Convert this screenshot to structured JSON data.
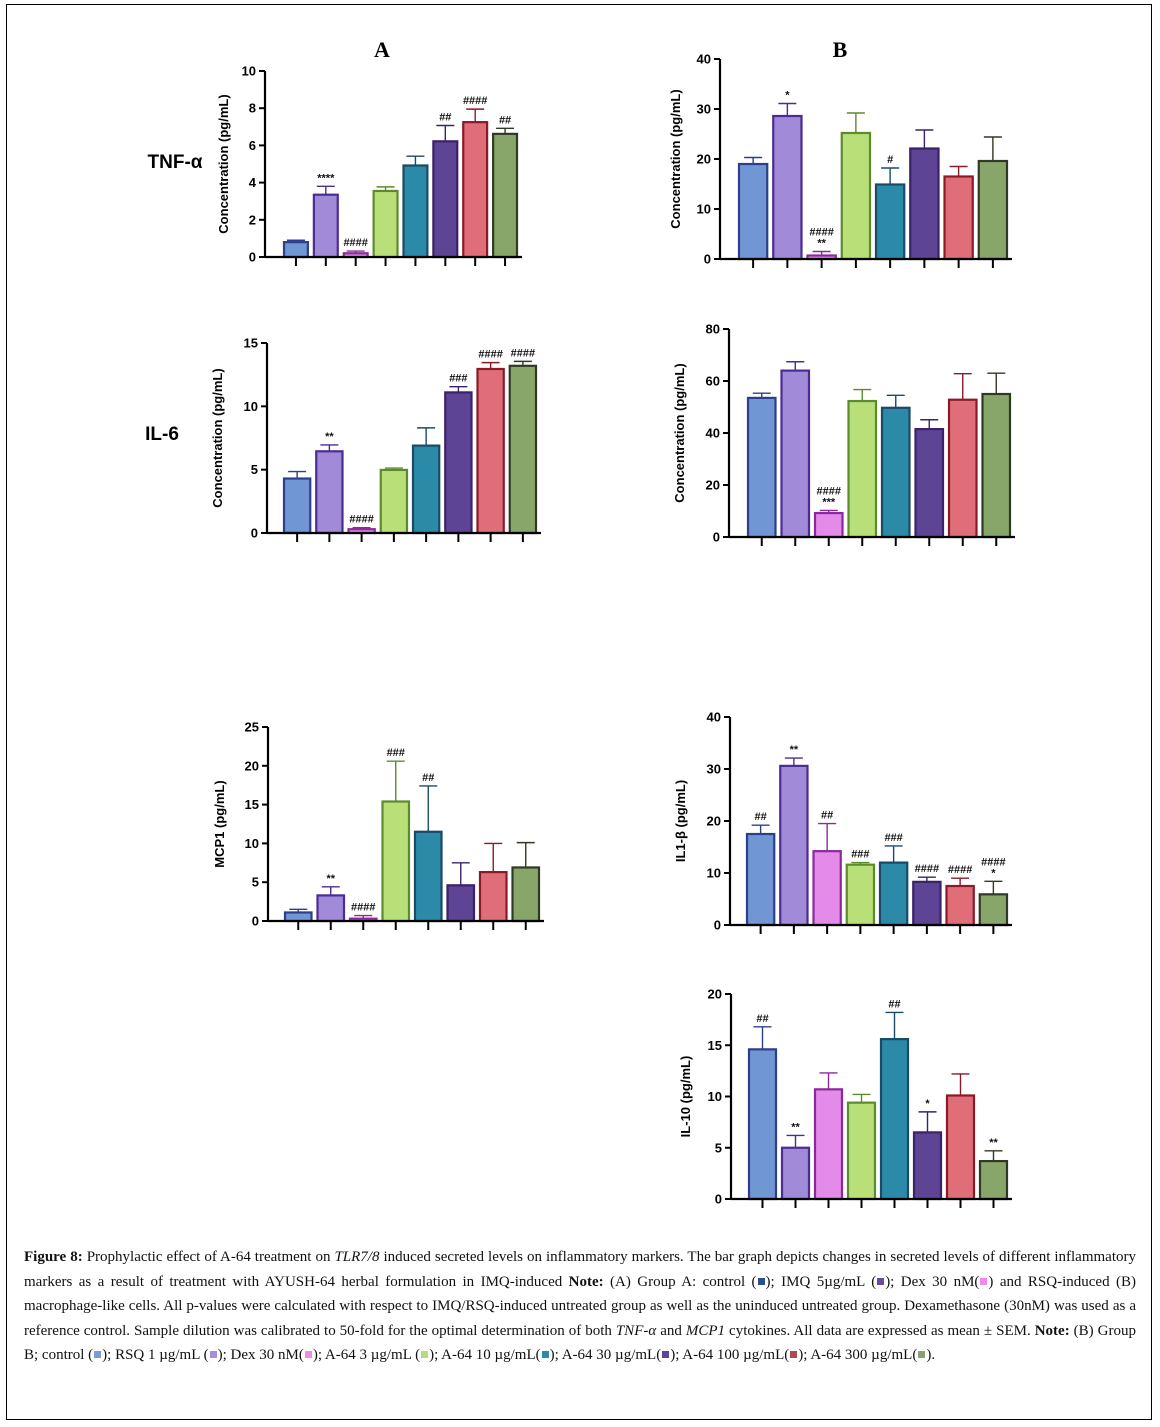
{
  "figure": {
    "panel_letters": [
      "A",
      "B"
    ],
    "row_labels": [
      "TNF-α",
      "IL-6"
    ],
    "bar_colors": [
      "#7096d4",
      "#a18ad8",
      "#e48ae8",
      "#b9df78",
      "#2a8aa8",
      "#5e4494",
      "#e06e78",
      "#89a66a"
    ],
    "bar_border_colors": [
      "#2d3f8a",
      "#4a2c92",
      "#8a2a9a",
      "#5e8a2e",
      "#1a4a66",
      "#3a2268",
      "#8a1a28",
      "#2f3a24"
    ]
  },
  "chart_data": [
    {
      "id": "tnf-a-groupA",
      "type": "bar",
      "title": "A",
      "row_label": "TNF-α",
      "ylabel": "Concentration (pg/mL)",
      "ylim": [
        0,
        10
      ],
      "yticks": [
        0,
        2,
        4,
        6,
        8,
        10
      ],
      "categories": [
        "control",
        "IMQ 5µg/mL",
        "Dex 30 nM",
        "A-64 3 µg/mL",
        "A-64 10 µg/mL",
        "A-64 30 µg/mL",
        "A-64 100 µg/mL",
        "A-64 300 µg/mL"
      ],
      "values": [
        0.8,
        3.35,
        0.2,
        3.55,
        4.92,
        6.22,
        7.25,
        6.62
      ],
      "errors": [
        0.1,
        0.45,
        0.12,
        0.22,
        0.5,
        0.85,
        0.7,
        0.3
      ],
      "annotations": [
        "",
        "****",
        "####",
        "",
        "",
        "##",
        "####",
        "##"
      ]
    },
    {
      "id": "tnf-a-groupB",
      "type": "bar",
      "title": "B",
      "row_label": "TNF-α",
      "ylabel": "Concentration (pg/mL)",
      "ylim": [
        0,
        40
      ],
      "yticks": [
        0,
        10,
        20,
        30,
        40
      ],
      "categories": [
        "control",
        "RSQ 1 µg/mL",
        "Dex 30 nM",
        "A-64 3 µg/mL",
        "A-64 10 µg/mL",
        "A-64 30 µg/mL",
        "A-64 100 µg/mL",
        "A-64 300 µg/mL"
      ],
      "values": [
        19.0,
        28.6,
        0.7,
        25.2,
        14.9,
        22.1,
        16.5,
        19.6
      ],
      "errors": [
        1.3,
        2.5,
        0.8,
        4.0,
        3.3,
        3.7,
        2.0,
        4.8
      ],
      "annotations": [
        "",
        "*",
        "####\n**",
        "",
        "#",
        "",
        "",
        ""
      ]
    },
    {
      "id": "il6-groupA",
      "type": "bar",
      "row_label": "IL-6",
      "ylabel": "Concentration (pg/mL)",
      "ylim": [
        0,
        15
      ],
      "yticks": [
        0,
        5,
        10,
        15
      ],
      "categories": [
        "control",
        "IMQ 5µg/mL",
        "Dex 30 nM",
        "A-64 3 µg/mL",
        "A-64 10 µg/mL",
        "A-64 30 µg/mL",
        "A-64 100 µg/mL",
        "A-64 300 µg/mL"
      ],
      "values": [
        4.3,
        6.45,
        0.3,
        4.98,
        6.9,
        11.1,
        12.95,
        13.2
      ],
      "errors": [
        0.55,
        0.5,
        0.12,
        0.15,
        1.4,
        0.45,
        0.5,
        0.35
      ],
      "annotations": [
        "",
        "**",
        "####",
        "",
        "",
        "###",
        "####",
        "####"
      ]
    },
    {
      "id": "il6-groupB",
      "type": "bar",
      "row_label": "IL-6",
      "ylabel": "Concentration (pg/mL)",
      "ylim": [
        0,
        80
      ],
      "yticks": [
        0,
        20,
        40,
        60,
        80
      ],
      "categories": [
        "control",
        "RSQ 1 µg/mL",
        "Dex 30 nM",
        "A-64 3 µg/mL",
        "A-64 10 µg/mL",
        "A-64 30 µg/mL",
        "A-64 100 µg/mL",
        "A-64 300 µg/mL"
      ],
      "values": [
        53.5,
        64.0,
        9.2,
        52.3,
        49.7,
        41.5,
        52.8,
        55.0
      ],
      "errors": [
        1.8,
        3.4,
        1.0,
        4.4,
        4.8,
        3.6,
        10.0,
        8.0
      ],
      "annotations": [
        "",
        "",
        "####\n***",
        "",
        "",
        "",
        "",
        ""
      ]
    },
    {
      "id": "mcp1-groupA",
      "type": "bar",
      "ylabel": "MCP1 (pg/mL)",
      "ylim": [
        0,
        25
      ],
      "yticks": [
        0,
        5,
        10,
        15,
        20,
        25
      ],
      "categories": [
        "control",
        "IMQ 5µg/mL",
        "Dex 30 nM",
        "A-64 3 µg/mL",
        "A-64 10 µg/mL",
        "A-64 30 µg/mL",
        "A-64 100 µg/mL",
        "A-64 300 µg/mL"
      ],
      "values": [
        1.1,
        3.3,
        0.3,
        15.4,
        11.5,
        4.6,
        6.3,
        6.9
      ],
      "errors": [
        0.4,
        1.1,
        0.4,
        5.2,
        5.9,
        2.9,
        3.7,
        3.2
      ],
      "annotations": [
        "",
        "**",
        "####",
        "###",
        "##",
        "",
        "",
        ""
      ]
    },
    {
      "id": "il1b-groupB",
      "type": "bar",
      "ylabel": "IL1-β (pg/mL)",
      "ylim": [
        0,
        40
      ],
      "yticks": [
        0,
        10,
        20,
        30,
        40
      ],
      "categories": [
        "control",
        "RSQ 1 µg/mL",
        "Dex 30 nM",
        "A-64 3 µg/mL",
        "A-64 10 µg/mL",
        "A-64 30 µg/mL",
        "A-64 100 µg/mL",
        "A-64 300 µg/mL"
      ],
      "values": [
        17.5,
        30.6,
        14.2,
        11.6,
        12.0,
        8.3,
        7.5,
        5.9
      ],
      "errors": [
        1.7,
        1.5,
        5.3,
        0.4,
        3.2,
        0.9,
        1.5,
        2.5
      ],
      "annotations": [
        "##",
        "**",
        "##",
        "###",
        "###",
        "####",
        "####",
        "####\n*"
      ]
    },
    {
      "id": "il10-groupB",
      "type": "bar",
      "ylabel": "IL-10 (pg/mL)",
      "ylim": [
        0,
        20
      ],
      "yticks": [
        0,
        5,
        10,
        15,
        20
      ],
      "categories": [
        "control",
        "RSQ 1 µg/mL",
        "Dex 30 nM",
        "A-64 3 µg/mL",
        "A-64 10 µg/mL",
        "A-64 30 µg/mL",
        "A-64 100 µg/mL",
        "A-64 300 µg/mL"
      ],
      "values": [
        14.6,
        5.0,
        10.7,
        9.4,
        15.6,
        6.5,
        10.1,
        3.7
      ],
      "errors": [
        2.2,
        1.2,
        1.6,
        0.8,
        2.6,
        2.0,
        2.1,
        1.0
      ],
      "annotations": [
        "##",
        "**",
        "",
        "",
        "##",
        "*",
        "",
        "**"
      ]
    }
  ],
  "caption": {
    "label": "Figure 8:",
    "t1": " Prophylactic effect of A-64 treatment on ",
    "tlr": "TLR7/8",
    "t2": " induced secreted levels on inflammatory markers. The bar graph depicts changes in secreted levels of different inflammatory markers as a result of treatment with AYUSH-64 herbal formulation in IMQ-induced ",
    "note1": "Note:",
    "t3": " (A) Group A: control (",
    "t4": "); IMQ 5µg/mL (",
    "t5": "); Dex 30 nM(",
    "t6": ")  and RSQ-induced (B) macrophage-like cells. All p-values were calculated with respect to IMQ/RSQ-induced untreated group as well as the uninduced untreated group. Dexamethasone (30nM) was used as a reference control. Sample dilution was calibrated to 50-fold for the optimal determination of both ",
    "tnf": "TNF-α",
    "t7": " and ",
    "mcp": "MCP1",
    "t8": " cytokines. All data are expressed as mean ± SEM. ",
    "note2": "Note:",
    "t9": " (B) Group B; control (",
    "t10": "); RSQ 1 µg/mL (",
    "t11": "); Dex 30 nM(",
    "t12": "); A-64 3 µg/mL (",
    "t13": "); A-64 10 µg/mL(",
    "t14": "); A-64 30 µg/mL(",
    "t15": "); A-64 100 µg/mL(",
    "t16": "); A-64 300 µg/mL(",
    "t17": ").",
    "swatchesA": [
      "#2d4f8a",
      "#6a4a9a",
      "#f08ae8"
    ],
    "swatchesB": [
      "#7a9ad8",
      "#a990d6",
      "#f08ae8",
      "#b4dc7c",
      "#2a8aa8",
      "#5e4494",
      "#b04a52",
      "#8aa070"
    ]
  }
}
